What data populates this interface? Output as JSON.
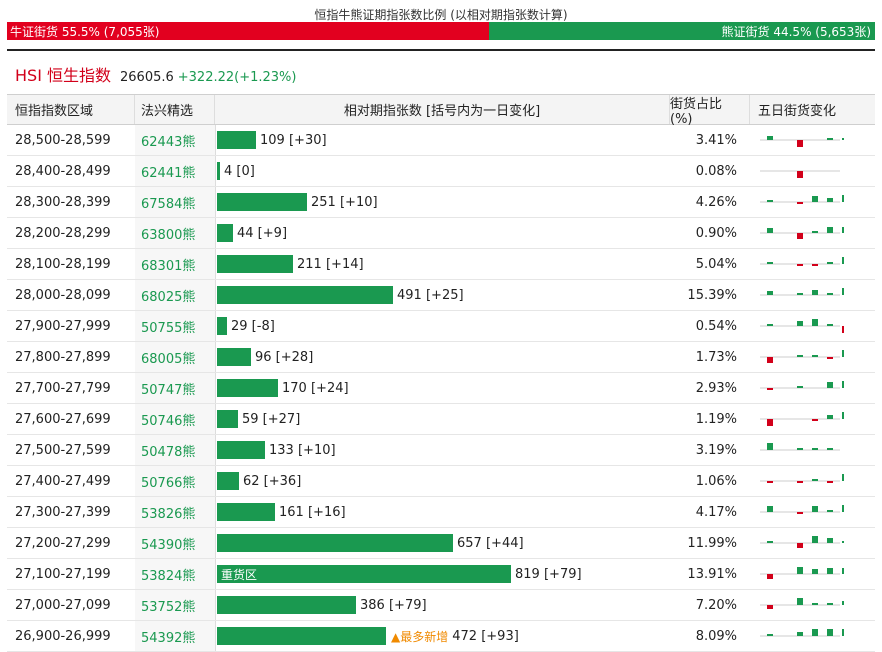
{
  "header": {
    "title": "恒指牛熊证期指张数比例 (以相对期指张数计算)",
    "bull_label": "牛证街货 55.5% (7,055张)",
    "bear_label": "熊证街货 44.5% (5,653张)",
    "bull_share": 0.555,
    "bull_color": "#e2001f",
    "bear_color": "#1a9950"
  },
  "index": {
    "name": "HSI 恒生指数",
    "price": "26605.6",
    "change": "+322.22(+1.23%)"
  },
  "table": {
    "columns": [
      "恒指指数区域",
      "法兴精选",
      "相对期指张数 [括号内为一日变化]",
      "街货占比(%)",
      "五日街货变化"
    ],
    "max_contracts": 819,
    "rows": [
      {
        "range": "28,500-28,599",
        "code": "62443熊",
        "contracts": 109,
        "contracts_text": "109",
        "change": "+30",
        "share": "3.41%",
        "tag": "",
        "spark": [
          0.3,
          0,
          -0.6,
          0,
          0.15,
          0.15
        ]
      },
      {
        "range": "28,400-28,499",
        "code": "62441熊",
        "contracts": 4,
        "contracts_text": "4",
        "change": "0",
        "share": "0.08%",
        "tag": "",
        "spark": [
          0,
          0,
          -0.6,
          0,
          0,
          0
        ]
      },
      {
        "range": "28,300-28,399",
        "code": "67584熊",
        "contracts": 251,
        "contracts_text": "251",
        "change": "+10",
        "share": "4.26%",
        "tag": "",
        "spark": [
          0.2,
          0,
          -0.1,
          0.5,
          0.3,
          0.6
        ]
      },
      {
        "range": "28,200-28,299",
        "code": "63800熊",
        "contracts": 44,
        "contracts_text": "44",
        "change": "+9",
        "share": "0.90%",
        "tag": "",
        "spark": [
          0.4,
          0,
          -0.5,
          0.2,
          0.5,
          0.5
        ]
      },
      {
        "range": "28,100-28,199",
        "code": "68301熊",
        "contracts": 211,
        "contracts_text": "211",
        "change": "+14",
        "share": "5.04%",
        "tag": "",
        "spark": [
          0.1,
          0,
          -0.1,
          -0.1,
          0.1,
          0.6
        ]
      },
      {
        "range": "28,000-28,099",
        "code": "68025熊",
        "contracts": 491,
        "contracts_text": "491",
        "change": "+25",
        "share": "15.39%",
        "tag": "",
        "spark": [
          0.3,
          0,
          0.1,
          0.4,
          0.2,
          0.6
        ]
      },
      {
        "range": "27,900-27,999",
        "code": "50755熊",
        "contracts": 29,
        "contracts_text": "29",
        "change": "-8",
        "share": "0.54%",
        "tag": "",
        "spark": [
          0.2,
          0,
          0.4,
          0.6,
          0.2,
          -0.6
        ]
      },
      {
        "range": "27,800-27,899",
        "code": "68005熊",
        "contracts": 96,
        "contracts_text": "96",
        "change": "+28",
        "share": "1.73%",
        "tag": "",
        "spark": [
          -0.5,
          0,
          0.2,
          0.1,
          -0.2,
          0.6
        ]
      },
      {
        "range": "27,700-27,799",
        "code": "50747熊",
        "contracts": 170,
        "contracts_text": "170",
        "change": "+24",
        "share": "2.93%",
        "tag": "",
        "spark": [
          -0.2,
          0,
          0.2,
          0,
          0.5,
          0.6
        ]
      },
      {
        "range": "27,600-27,699",
        "code": "50746熊",
        "contracts": 59,
        "contracts_text": "59",
        "change": "+27",
        "share": "1.19%",
        "tag": "",
        "spark": [
          -0.6,
          0,
          0,
          -0.2,
          0.3,
          0.6
        ]
      },
      {
        "range": "27,500-27,599",
        "code": "50478熊",
        "contracts": 133,
        "contracts_text": "133",
        "change": "+10",
        "share": "3.19%",
        "tag": "",
        "spark": [
          0.6,
          0,
          0.2,
          0.2,
          0.15,
          0
        ]
      },
      {
        "range": "27,400-27,499",
        "code": "50766熊",
        "contracts": 62,
        "contracts_text": "62",
        "change": "+36",
        "share": "1.06%",
        "tag": "",
        "spark": [
          -0.2,
          0,
          -0.2,
          0.2,
          -0.2,
          0.6
        ]
      },
      {
        "range": "27,300-27,399",
        "code": "53826熊",
        "contracts": 161,
        "contracts_text": "161",
        "change": "+16",
        "share": "4.17%",
        "tag": "",
        "spark": [
          0.5,
          0,
          -0.2,
          0.5,
          0.2,
          0.6
        ]
      },
      {
        "range": "27,200-27,299",
        "code": "54390熊",
        "contracts": 657,
        "contracts_text": "657",
        "change": "+44",
        "share": "11.99%",
        "tag": "",
        "spark": [
          0.2,
          0,
          -0.4,
          0.6,
          0.4,
          0.2
        ]
      },
      {
        "range": "27,100-27,199",
        "code": "53824熊",
        "contracts": 819,
        "contracts_text": "819",
        "change": "+79",
        "share": "13.91%",
        "tag": "",
        "bar_label": "重货区",
        "spark": [
          -0.4,
          0,
          0.6,
          0.4,
          0.5,
          0.5
        ]
      },
      {
        "range": "27,000-27,099",
        "code": "53752熊",
        "contracts": 386,
        "contracts_text": "386",
        "change": "+79",
        "share": "7.20%",
        "tag": "",
        "spark": [
          -0.3,
          0,
          0.6,
          0.2,
          0.2,
          0.3
        ]
      },
      {
        "range": "26,900-26,999",
        "code": "54392熊",
        "contracts": 472,
        "contracts_text": "472",
        "change": "+93",
        "share": "8.09%",
        "tag": "▲最多新增",
        "spark": [
          0.1,
          0,
          0.3,
          0.6,
          0.6,
          0.6
        ]
      }
    ]
  }
}
